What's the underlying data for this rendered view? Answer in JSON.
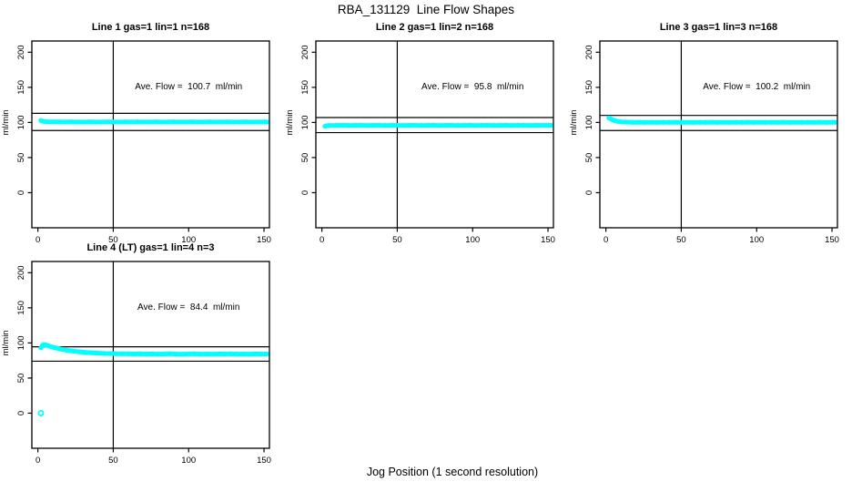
{
  "figure": {
    "title": "RBA_131129  Line Flow Shapes",
    "xlabel": "Jog Position (1 second resolution)",
    "background": "#ffffff",
    "point_color": "#00ffff",
    "line_color": "#000000"
  },
  "chart_data": [
    {
      "type": "scatter",
      "title": "Line 1 gas=1 lin=1 n=168",
      "ylabel": "ml/min",
      "annotation": "Ave. Flow =  100.7  ml/min",
      "ave_flow": 100.7,
      "n": 168,
      "xlim": [
        -4,
        153.6
      ],
      "ylim": [
        -50,
        216
      ],
      "xticks": [
        0,
        50,
        100,
        150
      ],
      "yticks": [
        0,
        50,
        100,
        150,
        200
      ],
      "vline": 50,
      "hlines": [
        113,
        88.5
      ],
      "annotation_xy": [
        100,
        150
      ],
      "points": [
        [
          2,
          102.8
        ],
        [
          3,
          101.9
        ],
        [
          4,
          101.4
        ],
        [
          6,
          101.1
        ],
        [
          10,
          100.9
        ],
        [
          14,
          100.8
        ],
        [
          18,
          100.6
        ],
        [
          22,
          100.9
        ],
        [
          26,
          100.7
        ],
        [
          30,
          100.6
        ],
        [
          34,
          100.8
        ],
        [
          38,
          100.7
        ],
        [
          42,
          100.6
        ],
        [
          46,
          100.8
        ],
        [
          50,
          100.7
        ],
        [
          54,
          100.6
        ],
        [
          58,
          100.8
        ],
        [
          62,
          100.7
        ],
        [
          66,
          100.9
        ],
        [
          70,
          100.6
        ],
        [
          74,
          100.7
        ],
        [
          78,
          100.8
        ],
        [
          82,
          100.6
        ],
        [
          86,
          100.7
        ],
        [
          90,
          100.8
        ],
        [
          94,
          100.6
        ],
        [
          98,
          100.7
        ],
        [
          102,
          100.8
        ],
        [
          106,
          100.6
        ],
        [
          110,
          100.7
        ],
        [
          114,
          100.8
        ],
        [
          118,
          100.6
        ],
        [
          122,
          100.7
        ],
        [
          126,
          100.8
        ],
        [
          130,
          100.6
        ],
        [
          134,
          100.7
        ],
        [
          138,
          100.8
        ],
        [
          142,
          100.6
        ],
        [
          146,
          100.7
        ],
        [
          150,
          100.8
        ],
        [
          152,
          100.7
        ]
      ],
      "outliers": []
    },
    {
      "type": "scatter",
      "title": "Line 2 gas=1 lin=2 n=168",
      "ylabel": "ml/min",
      "annotation": "Ave. Flow =  95.8  ml/min",
      "ave_flow": 95.8,
      "n": 168,
      "xlim": [
        -4,
        153.6
      ],
      "ylim": [
        -50,
        216
      ],
      "xticks": [
        0,
        50,
        100,
        150
      ],
      "yticks": [
        0,
        50,
        100,
        150,
        200
      ],
      "vline": 50,
      "hlines": [
        107,
        85.5
      ],
      "annotation_xy": [
        100,
        150
      ],
      "points": [
        [
          2,
          94.6
        ],
        [
          3,
          95.2
        ],
        [
          4,
          95.5
        ],
        [
          6,
          95.7
        ],
        [
          10,
          95.8
        ],
        [
          14,
          95.9
        ],
        [
          18,
          95.7
        ],
        [
          22,
          95.8
        ],
        [
          26,
          95.9
        ],
        [
          30,
          95.7
        ],
        [
          34,
          95.8
        ],
        [
          38,
          95.9
        ],
        [
          42,
          95.7
        ],
        [
          46,
          95.8
        ],
        [
          50,
          95.9
        ],
        [
          54,
          95.7
        ],
        [
          58,
          95.8
        ],
        [
          62,
          95.9
        ],
        [
          66,
          95.7
        ],
        [
          70,
          95.8
        ],
        [
          74,
          95.9
        ],
        [
          78,
          95.7
        ],
        [
          82,
          95.8
        ],
        [
          86,
          95.9
        ],
        [
          90,
          95.7
        ],
        [
          94,
          95.8
        ],
        [
          98,
          95.9
        ],
        [
          102,
          95.7
        ],
        [
          106,
          95.8
        ],
        [
          110,
          95.9
        ],
        [
          114,
          95.7
        ],
        [
          118,
          95.8
        ],
        [
          122,
          95.9
        ],
        [
          126,
          95.7
        ],
        [
          130,
          95.8
        ],
        [
          134,
          95.9
        ],
        [
          138,
          95.7
        ],
        [
          142,
          95.8
        ],
        [
          146,
          95.9
        ],
        [
          150,
          95.8
        ],
        [
          152,
          95.8
        ]
      ],
      "outliers": []
    },
    {
      "type": "scatter",
      "title": "Line 3 gas=1 lin=3 n=168",
      "ylabel": "ml/min",
      "annotation": "Ave. Flow =  100.2  ml/min",
      "ave_flow": 100.2,
      "n": 168,
      "xlim": [
        -4,
        153.6
      ],
      "ylim": [
        -50,
        216
      ],
      "xticks": [
        0,
        50,
        100,
        150
      ],
      "yticks": [
        0,
        50,
        100,
        150,
        200
      ],
      "vline": 50,
      "hlines": [
        110,
        88.5
      ],
      "annotation_xy": [
        100,
        150
      ],
      "points": [
        [
          2,
          106.5
        ],
        [
          3,
          105.3
        ],
        [
          4,
          104.2
        ],
        [
          5,
          103.2
        ],
        [
          6,
          102.4
        ],
        [
          8,
          101.4
        ],
        [
          10,
          100.9
        ],
        [
          14,
          100.5
        ],
        [
          18,
          100.3
        ],
        [
          22,
          100.4
        ],
        [
          26,
          100.2
        ],
        [
          30,
          100.3
        ],
        [
          34,
          100.1
        ],
        [
          38,
          100.3
        ],
        [
          42,
          100.2
        ],
        [
          46,
          100.4
        ],
        [
          50,
          100.2
        ],
        [
          54,
          100.3
        ],
        [
          58,
          100.1
        ],
        [
          62,
          100.3
        ],
        [
          66,
          100.2
        ],
        [
          70,
          100.4
        ],
        [
          74,
          100.2
        ],
        [
          78,
          100.3
        ],
        [
          82,
          100.1
        ],
        [
          86,
          100.3
        ],
        [
          90,
          100.2
        ],
        [
          94,
          100.4
        ],
        [
          98,
          100.2
        ],
        [
          102,
          100.3
        ],
        [
          106,
          100.1
        ],
        [
          110,
          100.3
        ],
        [
          114,
          100.2
        ],
        [
          118,
          100.4
        ],
        [
          122,
          100.2
        ],
        [
          126,
          100.3
        ],
        [
          130,
          100.1
        ],
        [
          134,
          100.3
        ],
        [
          138,
          100.2
        ],
        [
          142,
          100.4
        ],
        [
          146,
          100.2
        ],
        [
          150,
          100.3
        ],
        [
          152,
          100.2
        ]
      ],
      "outliers": []
    },
    {
      "type": "scatter",
      "title": "Line 4 (LT) gas=1 lin=4 n=3",
      "ylabel": "ml/min",
      "annotation": "Ave. Flow =  84.4  ml/min",
      "ave_flow": 84.4,
      "n": 3,
      "xlim": [
        -4,
        153.6
      ],
      "ylim": [
        -50,
        216
      ],
      "xticks": [
        0,
        50,
        100,
        150
      ],
      "yticks": [
        0,
        50,
        100,
        150,
        200
      ],
      "vline": 50,
      "hlines": [
        94.5,
        74
      ],
      "annotation_xy": [
        100,
        150
      ],
      "points": [
        [
          2,
          93.0
        ],
        [
          3,
          96.6
        ],
        [
          4,
          97.6
        ],
        [
          5,
          97.3
        ],
        [
          6,
          96.6
        ],
        [
          7,
          95.9
        ],
        [
          8,
          95.2
        ],
        [
          10,
          93.9
        ],
        [
          12,
          92.8
        ],
        [
          14,
          91.8
        ],
        [
          16,
          90.9
        ],
        [
          18,
          90.1
        ],
        [
          20,
          89.4
        ],
        [
          22,
          88.8
        ],
        [
          24,
          88.2
        ],
        [
          26,
          87.7
        ],
        [
          28,
          87.3
        ],
        [
          30,
          86.9
        ],
        [
          32,
          86.5
        ],
        [
          34,
          86.2
        ],
        [
          36,
          85.9
        ],
        [
          38,
          85.7
        ],
        [
          40,
          85.5
        ],
        [
          44,
          85.1
        ],
        [
          48,
          84.9
        ],
        [
          52,
          84.7
        ],
        [
          56,
          84.6
        ],
        [
          60,
          84.5
        ],
        [
          64,
          84.3
        ],
        [
          68,
          84.5
        ],
        [
          72,
          84.2
        ],
        [
          76,
          84.4
        ],
        [
          80,
          84.1
        ],
        [
          84,
          84.4
        ],
        [
          88,
          84.6
        ],
        [
          92,
          84.2
        ],
        [
          96,
          84.0
        ],
        [
          100,
          84.3
        ],
        [
          104,
          84.5
        ],
        [
          108,
          84.1
        ],
        [
          112,
          84.3
        ],
        [
          116,
          84.0
        ],
        [
          120,
          84.4
        ],
        [
          124,
          84.2
        ],
        [
          128,
          84.5
        ],
        [
          132,
          84.1
        ],
        [
          136,
          84.3
        ],
        [
          140,
          84.0
        ],
        [
          144,
          84.4
        ],
        [
          148,
          84.2
        ],
        [
          150,
          84.3
        ],
        [
          152,
          84.2
        ]
      ],
      "outliers": [
        [
          2,
          0
        ]
      ]
    }
  ]
}
